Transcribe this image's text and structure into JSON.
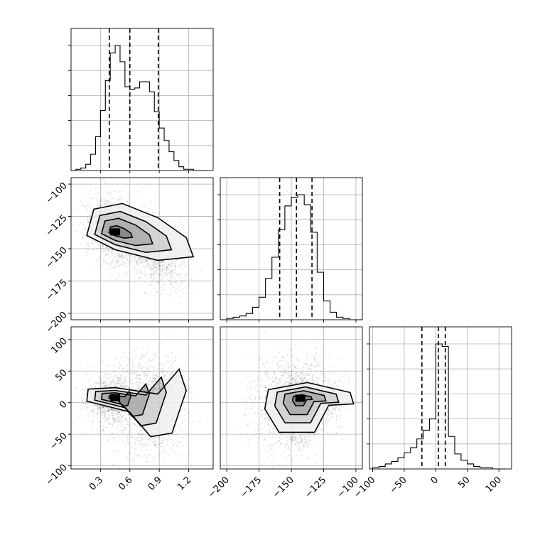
{
  "chart_data": {
    "type": "corner",
    "parameters": [
      {
        "name": "",
        "range": [
          0.0,
          1.45
        ],
        "ticks": [
          0.3,
          0.6,
          0.9,
          1.2
        ],
        "tick_labels": [
          "0.3",
          "0.6",
          "0.9",
          "1.2"
        ]
      },
      {
        "name": "",
        "range": [
          -205,
          -95
        ],
        "ticks": [
          -200,
          -175,
          -150,
          -125,
          -100
        ],
        "tick_labels": [
          "−200",
          "−175",
          "−150",
          "−125",
          "−100"
        ]
      },
      {
        "name": "",
        "range": [
          -105,
          120
        ],
        "ticks": [
          -100,
          -50,
          0,
          50,
          100
        ],
        "tick_labels": [
          "−100",
          "−50",
          "0",
          "50",
          "100"
        ]
      }
    ],
    "histograms": [
      {
        "bin_edges": [
          0.0,
          0.05,
          0.1,
          0.15,
          0.2,
          0.25,
          0.3,
          0.35,
          0.4,
          0.45,
          0.5,
          0.55,
          0.6,
          0.65,
          0.7,
          0.75,
          0.8,
          0.85,
          0.9,
          0.95,
          1.0,
          1.05,
          1.1,
          1.15,
          1.2,
          1.25,
          1.3,
          1.35,
          1.4
        ],
        "counts": [
          0,
          1,
          2,
          5,
          13,
          27,
          48,
          72,
          94,
          100,
          87,
          67,
          65,
          66,
          71,
          71,
          63,
          47,
          34,
          24,
          15,
          8,
          3,
          1,
          1,
          0,
          0,
          0
        ],
        "quantiles": [
          0.39,
          0.6,
          0.89
        ]
      },
      {
        "bin_edges": [
          -205,
          -200,
          -195,
          -190,
          -185,
          -180,
          -175,
          -170,
          -165,
          -160,
          -155,
          -150,
          -145,
          -140,
          -135,
          -130,
          -125,
          -120,
          -115,
          -110,
          -105,
          -100,
          -95
        ],
        "counts": [
          0,
          1,
          2,
          3,
          5,
          10,
          18,
          33,
          50,
          72,
          91,
          98,
          100,
          92,
          70,
          38,
          15,
          6,
          2,
          1,
          0,
          0
        ],
        "quantiles": [
          -159,
          -146,
          -134
        ]
      },
      {
        "bin_edges": [
          -100,
          -90,
          -80,
          -70,
          -60,
          -50,
          -40,
          -30,
          -20,
          -10,
          0,
          10,
          20,
          30,
          40,
          50,
          60,
          70,
          80,
          90,
          100,
          110
        ],
        "counts": [
          1,
          2,
          4,
          6,
          9,
          13,
          17,
          24,
          31,
          40,
          100,
          98,
          26,
          12,
          7,
          4,
          2,
          1,
          1,
          0,
          0
        ],
        "quantiles": [
          -22,
          4,
          15
        ]
      }
    ],
    "pairs": [
      {
        "x_param": 0,
        "y_param": 1,
        "mode": [
          0.45,
          -137
        ]
      },
      {
        "x_param": 0,
        "y_param": 2,
        "mode": [
          0.45,
          8
        ]
      },
      {
        "x_param": 1,
        "y_param": 2,
        "mode": [
          -143,
          7
        ]
      }
    ],
    "contour_levels": 4,
    "grid": true,
    "colors": {
      "line": "#000000",
      "grid": "#b0b0b0",
      "points": "#000000"
    }
  }
}
